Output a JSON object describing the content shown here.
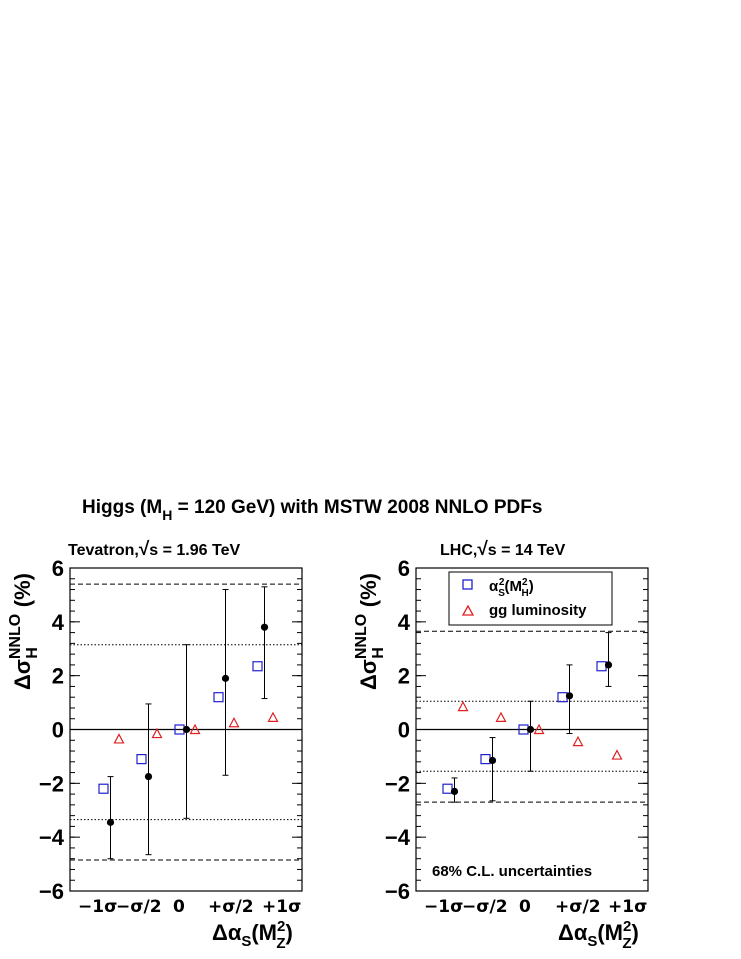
{
  "figure": {
    "title_prefix": "Higgs (M",
    "title_sub": "H",
    "title_suffix": " = 120 GeV) with MSTW 2008 NNLO PDFs"
  },
  "legend": {
    "entry_squares_alpha": "α",
    "entry_squares_sub": "S",
    "entry_squares_sup": "2",
    "entry_squares_paren": "(M",
    "entry_squares_paren_sub": "H",
    "entry_squares_paren_sup": "2",
    "entry_squares_close": ")",
    "entry_triangles": "gg luminosity"
  },
  "annotation": "68% C.L. uncertainties",
  "colors": {
    "squares": "#2020d0",
    "triangles": "#e02020",
    "points": "#000000"
  },
  "chart_data": [
    {
      "type": "scatter",
      "panel_title_prefix": "Tevatron,",
      "panel_title_root": "√",
      "panel_title_suffix": "s = 1.96 TeV",
      "ylabel": "Δσ",
      "ylabel_sup": "NNLO",
      "ylabel_sub": "H",
      "ylabel_unit": "(%)",
      "xlabel": "Δα",
      "xlabel_sub": "S",
      "xlabel_paren": "(M",
      "xlabel_paren_sup": "2",
      "xlabel_paren_sub": "Z",
      "xlabel_close": ")",
      "ylim": [
        -6,
        6
      ],
      "yticks": [
        "−6",
        "−4",
        "−2",
        "0",
        "2",
        "4",
        "6"
      ],
      "xticklabels": [
        "−1σ",
        "−σ/2",
        "0",
        "+σ/2",
        "+1σ"
      ],
      "reference_lines": {
        "dashed": [
          5.4,
          -4.85
        ],
        "dotted": [
          3.15,
          -3.35
        ],
        "solid": [
          0
        ]
      },
      "series": [
        {
          "marker": "filled-circle-with-errorbars",
          "values": [
            -3.45,
            -1.75,
            0.0,
            1.9,
            3.8
          ],
          "err_low": [
            1.35,
            2.9,
            3.3,
            3.6,
            2.65
          ],
          "err_high": [
            1.7,
            2.7,
            3.15,
            3.3,
            1.5
          ]
        },
        {
          "name": "α_S²(M_H²)",
          "marker": "open-square",
          "values": [
            -2.2,
            -1.1,
            0.0,
            1.2,
            2.35
          ]
        },
        {
          "name": "gg luminosity",
          "marker": "open-triangle",
          "values": [
            -0.35,
            -0.15,
            0.0,
            0.25,
            0.45
          ]
        }
      ]
    },
    {
      "type": "scatter",
      "panel_title_prefix": "LHC,",
      "panel_title_root": "√",
      "panel_title_suffix": "s = 14 TeV",
      "ylabel": "Δσ",
      "ylabel_sup": "NNLO",
      "ylabel_sub": "H",
      "ylabel_unit": "(%)",
      "xlabel": "Δα",
      "xlabel_sub": "S",
      "xlabel_paren": "(M",
      "xlabel_paren_sup": "2",
      "xlabel_paren_sub": "Z",
      "xlabel_close": ")",
      "ylim": [
        -6,
        6
      ],
      "yticks": [
        "−6",
        "−4",
        "−2",
        "0",
        "2",
        "4",
        "6"
      ],
      "xticklabels": [
        "−1σ",
        "−σ/2",
        "0",
        "+σ/2",
        "+1σ"
      ],
      "reference_lines": {
        "dashed": [
          3.65,
          -2.7
        ],
        "dotted": [
          1.05,
          -1.55
        ],
        "solid": [
          0
        ]
      },
      "series": [
        {
          "marker": "filled-circle-with-errorbars",
          "values": [
            -2.3,
            -1.15,
            0.0,
            1.25,
            2.4
          ],
          "err_low": [
            0.4,
            1.5,
            1.55,
            1.4,
            0.8
          ],
          "err_high": [
            0.5,
            0.85,
            1.05,
            1.15,
            1.2
          ]
        },
        {
          "name": "α_S²(M_H²)",
          "marker": "open-square",
          "values": [
            -2.2,
            -1.1,
            0.0,
            1.2,
            2.35
          ]
        },
        {
          "name": "gg luminosity",
          "marker": "open-triangle",
          "values": [
            0.85,
            0.45,
            0.0,
            -0.45,
            -0.95
          ]
        }
      ]
    }
  ]
}
